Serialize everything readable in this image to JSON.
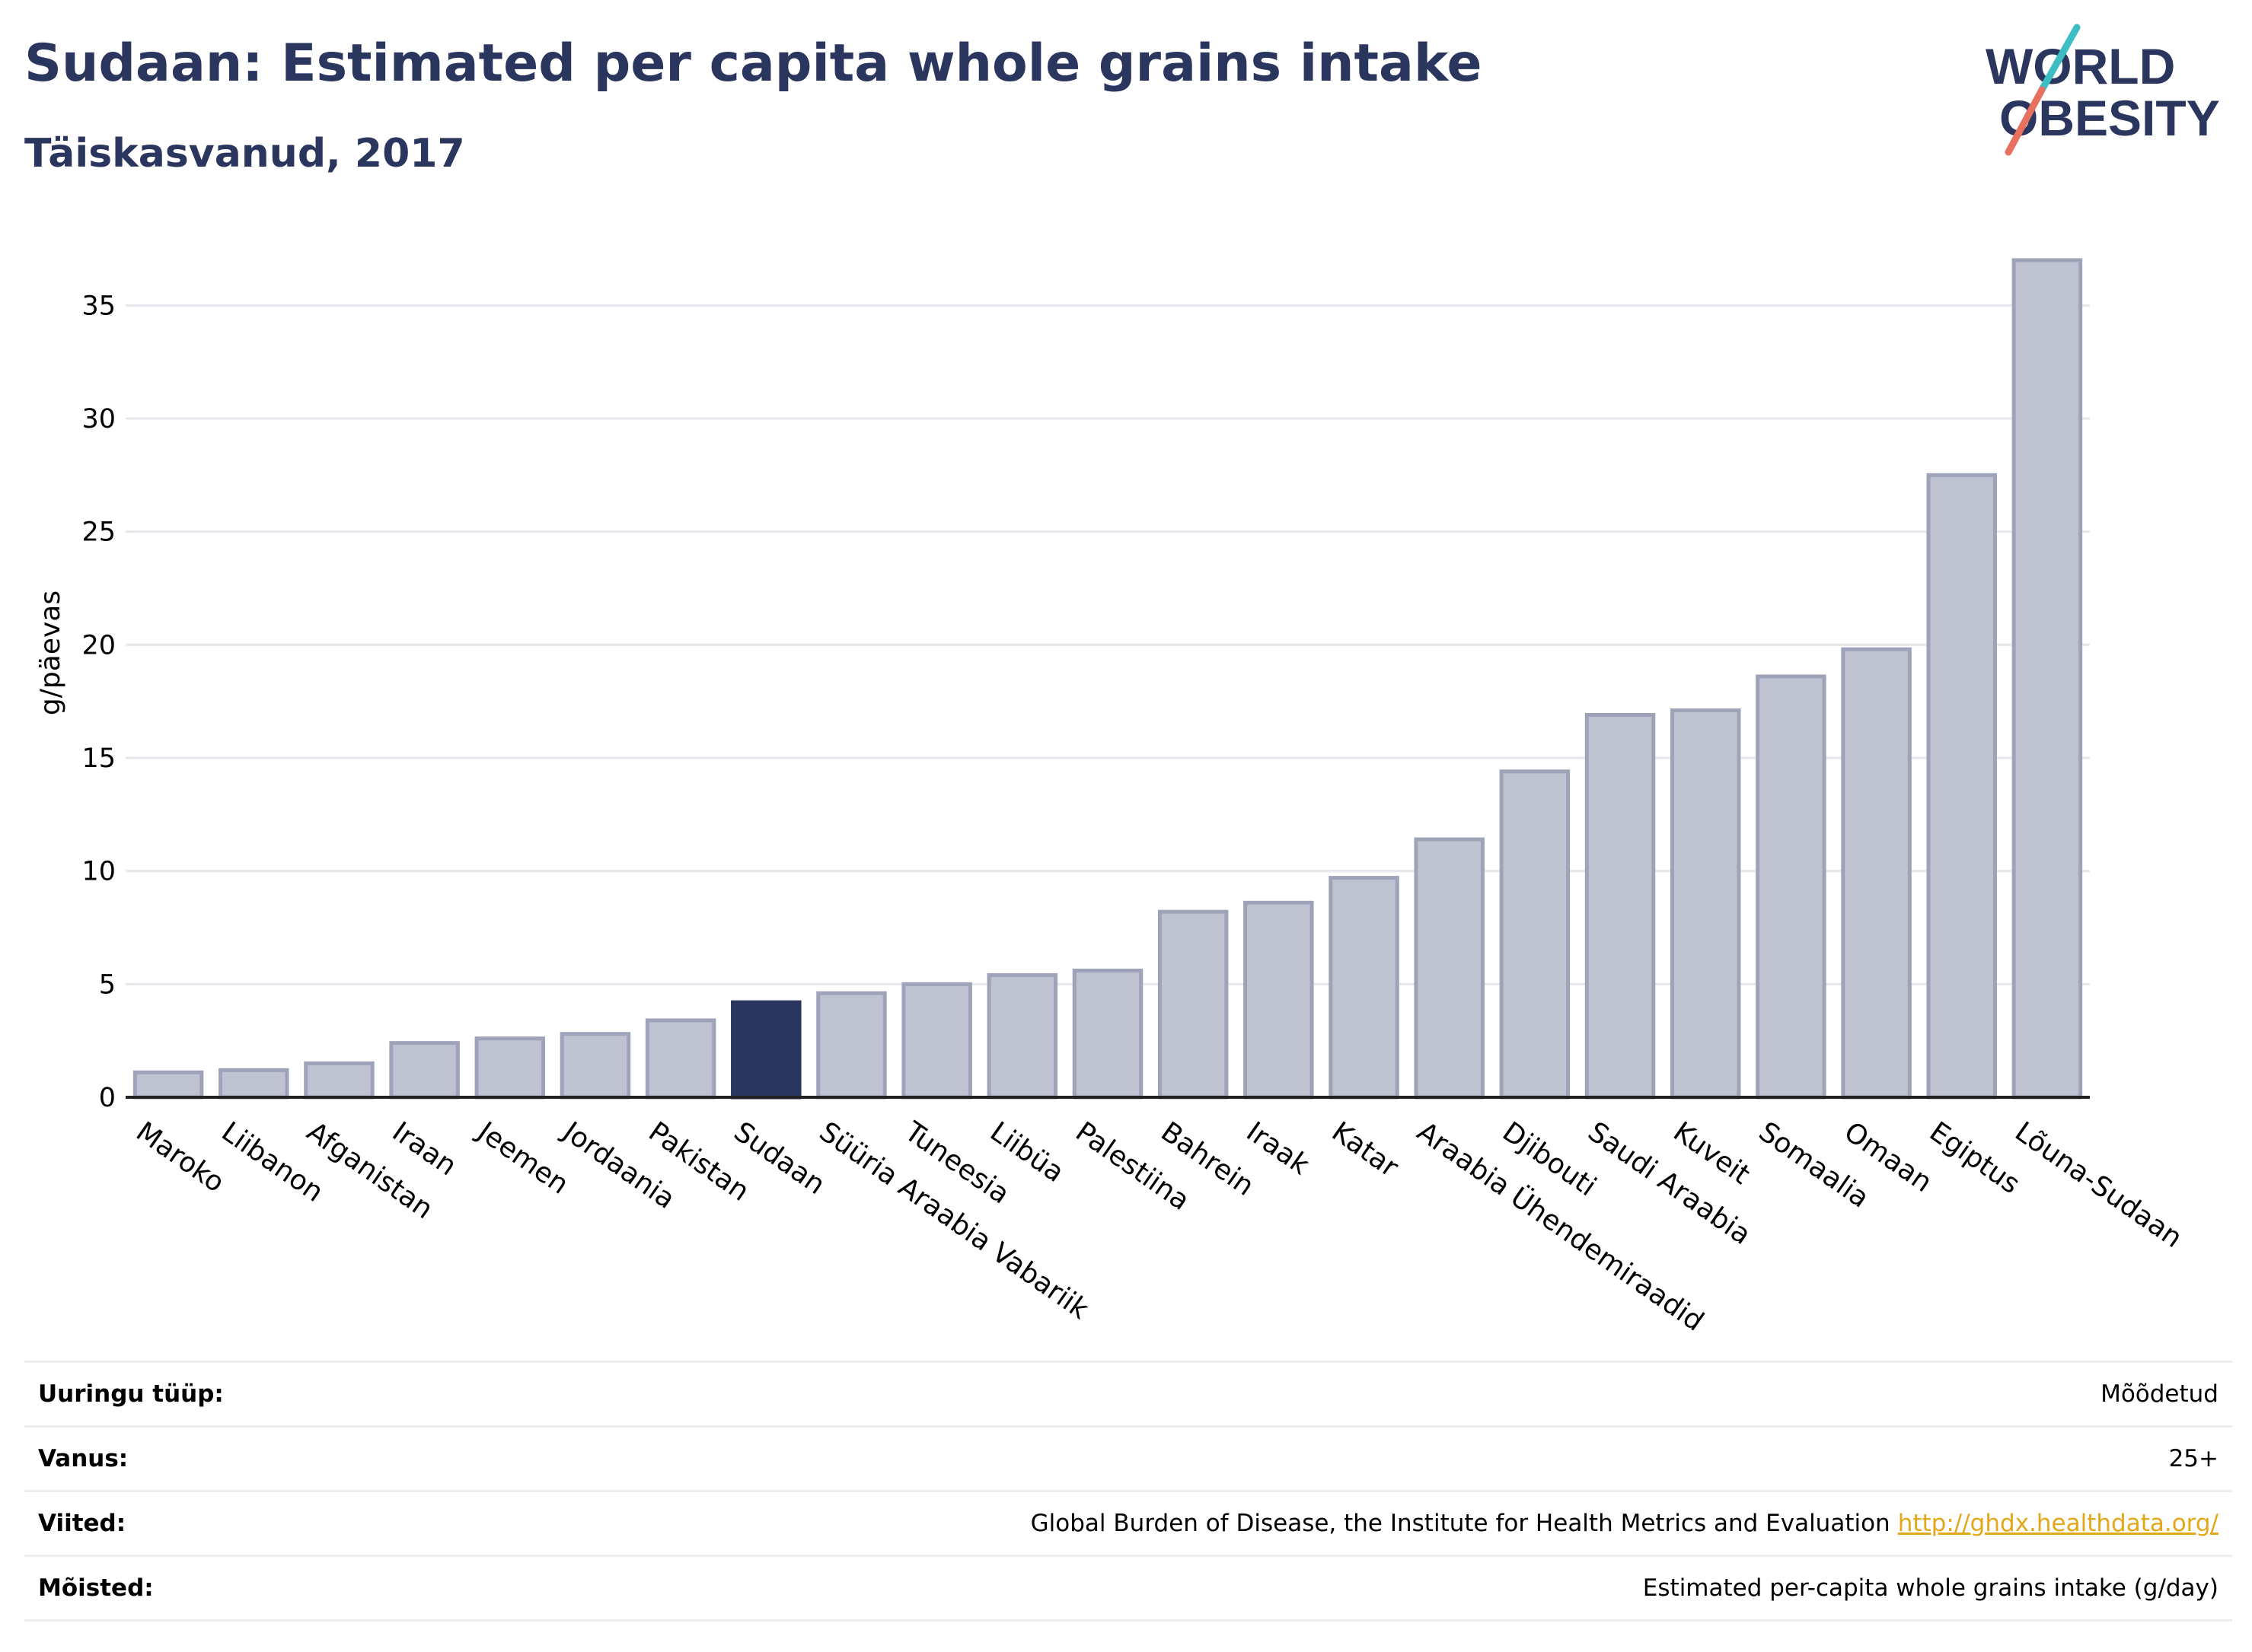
{
  "header": {
    "title": "Sudaan: Estimated per capita whole grains intake",
    "subtitle": "Täiskasvanud, 2017"
  },
  "logo": {
    "line1": "WORLD",
    "line2": "OBESITY",
    "colors": {
      "text": "#2b365f",
      "slash_top": "#3dbdc4",
      "slash_bottom": "#e8705f"
    }
  },
  "chart_data": {
    "type": "bar",
    "ylabel": "g/päevas",
    "xlabel": "",
    "ylim": [
      0,
      37.5
    ],
    "yticks": [
      0,
      5,
      10,
      15,
      20,
      25,
      30,
      35
    ],
    "grid": true,
    "highlight_category": "Sudaan",
    "colors": {
      "bar": "#bfc2d0",
      "bar_edge": "#9ea3b9",
      "highlight": "#2b365f",
      "grid": "#e6e8ee",
      "axis": "#222222"
    },
    "categories": [
      "Maroko",
      "Liibanon",
      "Afganistan",
      "Iraan",
      "Jeemen",
      "Jordaania",
      "Pakistan",
      "Sudaan",
      "Süüria Araabia Vabariik",
      "Tuneesia",
      "Liibüa",
      "Palestiina",
      "Bahrein",
      "Iraak",
      "Katar",
      "Araabia Ühendemiraadid",
      "Djibouti",
      "Saudi Araabia",
      "Kuveit",
      "Somaalia",
      "Omaan",
      "Egiptus",
      "Lõuna-Sudaan"
    ],
    "values": [
      1.1,
      1.2,
      1.5,
      2.4,
      2.6,
      2.8,
      3.4,
      4.2,
      4.6,
      5.0,
      5.4,
      5.6,
      8.2,
      8.6,
      9.7,
      11.4,
      14.4,
      16.9,
      17.1,
      18.6,
      19.8,
      27.5,
      37.0
    ]
  },
  "info": {
    "rows": [
      {
        "label": "Uuringu tüüp:",
        "value": "Mõõdetud",
        "link": ""
      },
      {
        "label": "Vanus:",
        "value": "25+",
        "link": ""
      },
      {
        "label": "Viited:",
        "value": "Global Burden of Disease, the Institute for Health Metrics and Evaluation",
        "link": "http://ghdx.healthdata.org/"
      },
      {
        "label": "Mõisted:",
        "value": "Estimated per-capita whole grains intake (g/day)",
        "link": ""
      }
    ]
  }
}
